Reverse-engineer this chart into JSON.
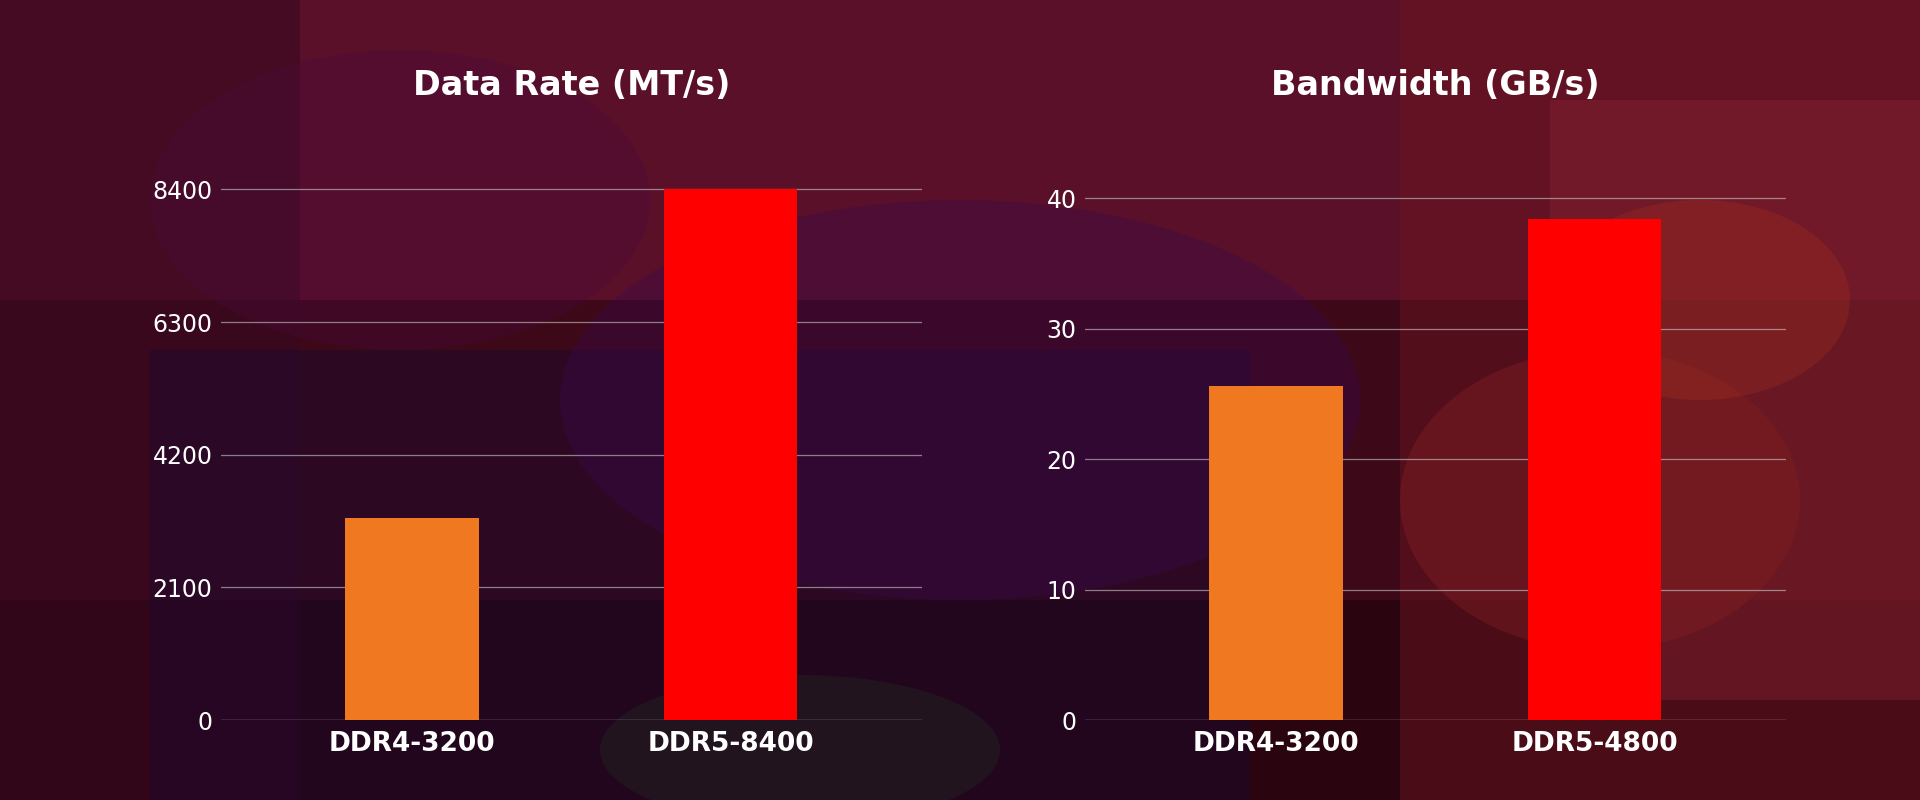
{
  "chart1": {
    "title": "Data Rate (MT/s)",
    "categories": [
      "DDR4-3200",
      "DDR5-8400"
    ],
    "values": [
      3200,
      8400
    ],
    "bar_colors": [
      "#F07820",
      "#FF0000"
    ],
    "yticks": [
      0,
      2100,
      4200,
      6300,
      8400
    ],
    "ylim": [
      0,
      9500
    ]
  },
  "chart2": {
    "title": "Bandwidth (GB/s)",
    "categories": [
      "DDR4-3200",
      "DDR5-4800"
    ],
    "values": [
      25.6,
      38.4
    ],
    "bar_colors": [
      "#F07820",
      "#FF0000"
    ],
    "yticks": [
      0,
      10,
      20,
      30,
      40
    ],
    "ylim": [
      0,
      46
    ]
  },
  "title_color": "#ffffff",
  "tick_color": "#ffffff",
  "grid_color": "#cccccc",
  "label_color": "#ffffff",
  "title_fontsize": 24,
  "tick_fontsize": 17,
  "label_fontsize": 19,
  "bg_pixels": {
    "top_left": "#5a1028",
    "top_center": "#6b1535",
    "top_right": "#8b2040",
    "mid_left": "#4a0820",
    "mid_center_left": "#3a0818",
    "mid_center": "#5a1030",
    "mid_center_right": "#7a1838",
    "mid_right": "#9a2848",
    "bot_left": "#2a0510",
    "bot_center": "#4a1025",
    "bot_right": "#6a1830"
  }
}
